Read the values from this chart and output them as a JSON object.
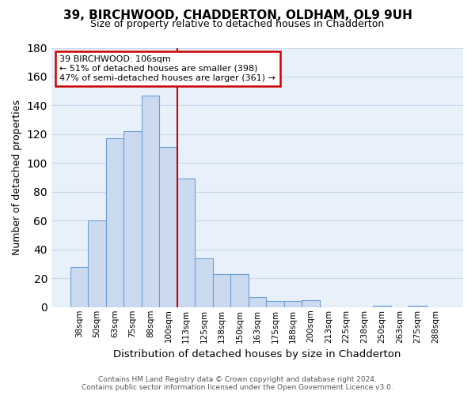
{
  "title": "39, BIRCHWOOD, CHADDERTON, OLDHAM, OL9 9UH",
  "subtitle": "Size of property relative to detached houses in Chadderton",
  "xlabel": "Distribution of detached houses by size in Chadderton",
  "ylabel": "Number of detached properties",
  "bar_labels": [
    "38sqm",
    "50sqm",
    "63sqm",
    "75sqm",
    "88sqm",
    "100sqm",
    "113sqm",
    "125sqm",
    "138sqm",
    "150sqm",
    "163sqm",
    "175sqm",
    "188sqm",
    "200sqm",
    "213sqm",
    "225sqm",
    "238sqm",
    "250sqm",
    "263sqm",
    "275sqm",
    "288sqm"
  ],
  "bar_values": [
    28,
    60,
    117,
    122,
    147,
    111,
    89,
    34,
    23,
    23,
    7,
    4,
    4,
    5,
    0,
    0,
    0,
    1,
    0,
    1,
    0
  ],
  "bar_color": "#ccdaf0",
  "bar_edge_color": "#6b9fd4",
  "vline_x": 5.5,
  "vline_color": "#cc0000",
  "annotation_title": "39 BIRCHWOOD: 106sqm",
  "annotation_line1": "← 51% of detached houses are smaller (398)",
  "annotation_line2": "47% of semi-detached houses are larger (361) →",
  "annotation_box_color": "#ffffff",
  "annotation_box_edge": "#cc0000",
  "ylim": [
    0,
    180
  ],
  "yticks": [
    0,
    20,
    40,
    60,
    80,
    100,
    120,
    140,
    160,
    180
  ],
  "footer1": "Contains HM Land Registry data © Crown copyright and database right 2024.",
  "footer2": "Contains public sector information licensed under the Open Government Licence v3.0.",
  "background_color": "#ffffff",
  "grid_color": "#c8d8ec",
  "ax_bg_color": "#e8f0fa"
}
